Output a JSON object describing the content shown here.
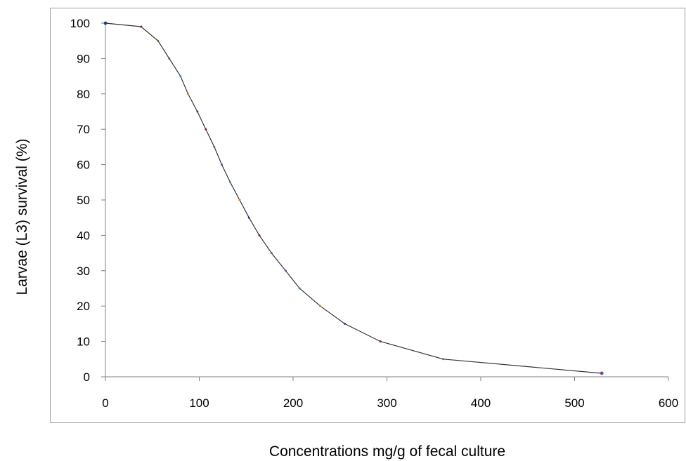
{
  "chart_data": {
    "type": "line",
    "title": "",
    "xlabel": "Concentrations mg/g of fecal culture",
    "ylabel": "Larvae (L3)  survival  (%)",
    "xlim": [
      0,
      600
    ],
    "ylim": [
      0,
      100
    ],
    "xticks": [
      0,
      100,
      200,
      300,
      400,
      500,
      600
    ],
    "yticks": [
      0,
      10,
      20,
      30,
      40,
      50,
      60,
      70,
      80,
      90,
      100
    ],
    "grid": false,
    "legend": "none",
    "series": [
      {
        "color": "#333333",
        "x": [
          0,
          38,
          56,
          68,
          80,
          88,
          98,
          107,
          116,
          124,
          133,
          143,
          153,
          164,
          177,
          192,
          207,
          229,
          255,
          293,
          360,
          529
        ],
        "y": [
          100,
          99,
          95,
          90,
          85,
          80,
          75,
          70,
          65,
          60,
          55,
          50,
          45,
          40,
          35,
          30,
          25,
          20,
          15,
          10,
          5,
          1
        ]
      }
    ],
    "marker_colors": [
      "#1f3f8f",
      "#8b1a1a",
      "#4f7f2f",
      "#7f3f9f",
      "#2f8fbf",
      "#d97a1f"
    ]
  }
}
